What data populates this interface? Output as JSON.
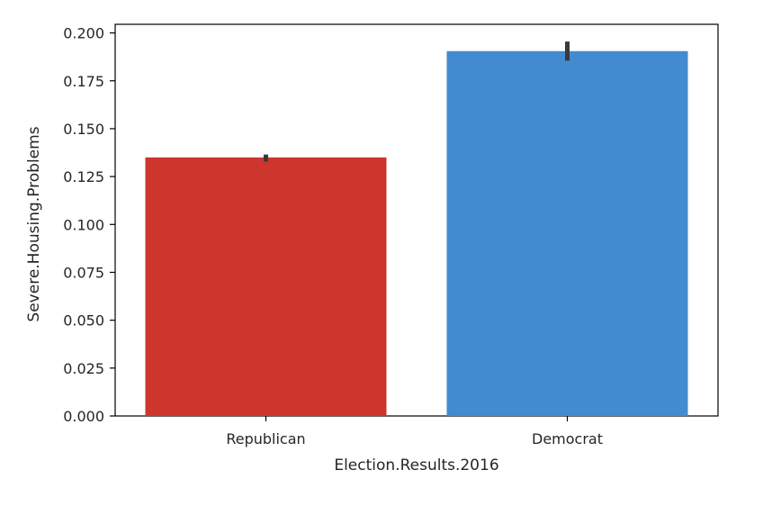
{
  "chart_data": {
    "type": "bar",
    "title": "",
    "xlabel": "Election.Results.2016",
    "ylabel": "Severe.Housing.Problems",
    "categories": [
      "Republican",
      "Democrat"
    ],
    "values": [
      0.135,
      0.1905
    ],
    "error_bars": [
      [
        0.1328,
        0.1365
      ],
      [
        0.1855,
        0.1955
      ]
    ],
    "bar_colors": [
      "#cd352d",
      "#428bd0"
    ],
    "ylim": [
      0,
      0.2045
    ],
    "yticks": [
      0.0,
      0.025,
      0.05,
      0.075,
      0.1,
      0.125,
      0.15,
      0.175,
      0.2
    ],
    "ytick_labels": [
      "0.000",
      "0.025",
      "0.050",
      "0.075",
      "0.100",
      "0.125",
      "0.150",
      "0.175",
      "0.200"
    ],
    "grid": false,
    "legend": "none",
    "error_bar_color": "#3a3a3a"
  }
}
